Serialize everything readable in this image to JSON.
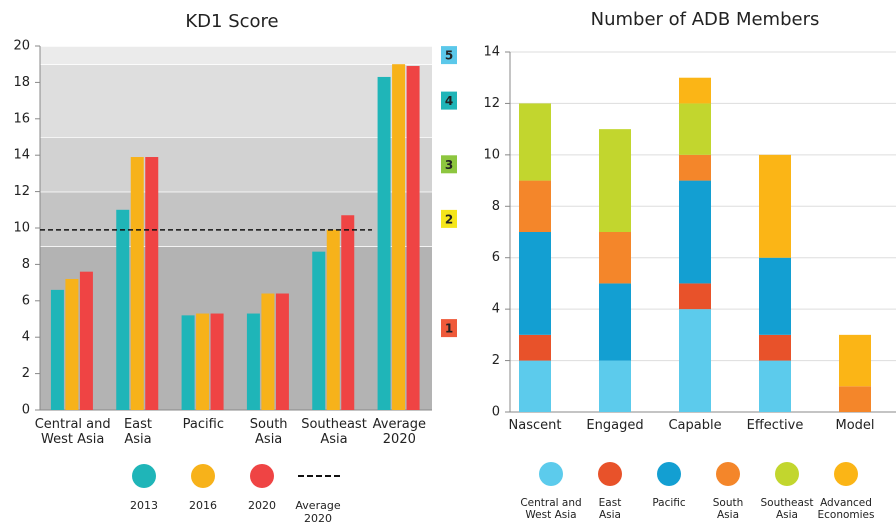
{
  "chart_data": [
    {
      "type": "bar",
      "title": "KD1 Score",
      "categories": [
        "Central and\nWest Asia",
        "East\nAsia",
        "Pacific",
        "South\nAsia",
        "Southeast\nAsia",
        "Average\n2020"
      ],
      "series": [
        {
          "name": "2013",
          "color": "#1fb5b8",
          "values": [
            6.6,
            11.0,
            5.2,
            5.3,
            8.7,
            18.3
          ]
        },
        {
          "name": "2016",
          "color": "#f7b21a",
          "values": [
            7.2,
            13.9,
            5.3,
            6.4,
            9.9,
            19.0
          ]
        },
        {
          "name": "2020",
          "color": "#ef4444",
          "values": [
            7.6,
            13.9,
            5.3,
            6.4,
            10.7,
            18.9
          ]
        }
      ],
      "reference_line": {
        "name": "Average\n2020",
        "value": 9.9
      },
      "levels": [
        {
          "label": "1",
          "color": "#ef5a3a",
          "range": [
            0,
            9
          ]
        },
        {
          "label": "2",
          "color": "#f5e61a",
          "range": [
            9,
            12
          ]
        },
        {
          "label": "3",
          "color": "#8dc63f",
          "range": [
            12,
            15
          ]
        },
        {
          "label": "4",
          "color": "#1fb5b8",
          "range": [
            15,
            19
          ]
        },
        {
          "label": "5",
          "color": "#5bc8ea",
          "range": [
            19,
            20
          ]
        }
      ],
      "ylim": [
        0,
        20
      ],
      "yticks": [
        0,
        2,
        4,
        6,
        8,
        10,
        12,
        14,
        16,
        18,
        20
      ]
    },
    {
      "type": "stacked_bar",
      "title": "Number of ADB Members",
      "categories": [
        "Nascent",
        "Engaged",
        "Capable",
        "Effective",
        "Model"
      ],
      "series": [
        {
          "name": "Central and\nWest Asia",
          "color": "#5ccbec",
          "values": [
            2,
            2,
            4,
            2,
            0
          ]
        },
        {
          "name": "East\nAsia",
          "color": "#e8522a",
          "values": [
            1,
            0,
            1,
            1,
            0
          ]
        },
        {
          "name": "Pacific",
          "color": "#139fd2",
          "values": [
            4,
            3,
            4,
            3,
            0
          ]
        },
        {
          "name": "South\nAsia",
          "color": "#f4862a",
          "values": [
            2,
            2,
            1,
            0,
            1
          ]
        },
        {
          "name": "Southeast\nAsia",
          "color": "#c2d62e",
          "values": [
            3,
            4,
            2,
            0,
            0
          ]
        },
        {
          "name": "Advanced\nEconomies",
          "color": "#fbb516",
          "values": [
            0,
            0,
            1,
            4,
            2
          ]
        }
      ],
      "ylim": [
        0,
        14
      ],
      "yticks": [
        0,
        2,
        4,
        6,
        8,
        10,
        12,
        14
      ],
      "grid": true
    }
  ]
}
